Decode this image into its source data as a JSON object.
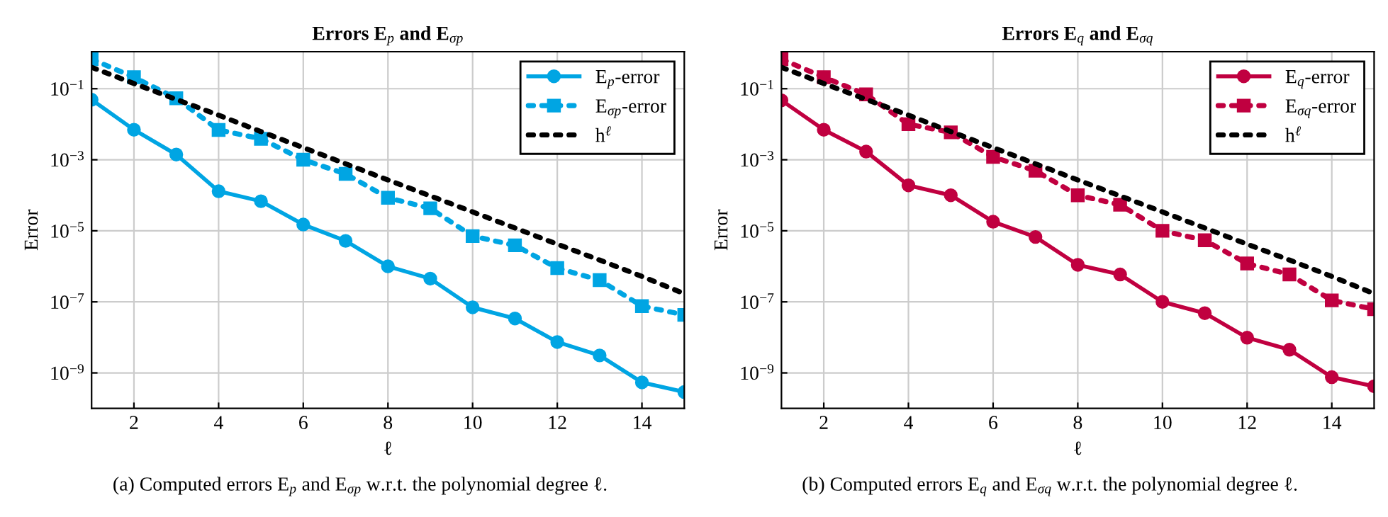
{
  "chart_data": [
    {
      "type": "line",
      "title": "Errors E$_{p}$ and E$_{σp}$",
      "xlabel": "ℓ",
      "ylabel": "Error",
      "x": [
        1,
        2,
        3,
        4,
        5,
        6,
        7,
        8,
        9,
        10,
        11,
        12,
        13,
        14,
        15
      ],
      "series": [
        {
          "name": "E$_{p}$-error",
          "color": "#00a5e3",
          "marker": "circle",
          "line_style": "solid",
          "values": [
            0.049,
            0.007,
            0.0014,
            0.00013,
            6.8e-05,
            1.5e-05,
            5.2e-06,
            1e-06,
            4.5e-07,
            7e-08,
            3.4e-08,
            7.4e-09,
            3.1e-09,
            5.4e-10,
            2.9e-10
          ]
        },
        {
          "name": "E$_{σp}$-error",
          "color": "#00a5e3",
          "marker": "square",
          "line_style": "dotted",
          "values": [
            0.68,
            0.21,
            0.054,
            0.0069,
            0.0039,
            0.001,
            0.0004,
            8.5e-05,
            4.3e-05,
            7.1e-06,
            3.9e-06,
            8.9e-07,
            4.1e-07,
            7.6e-08,
            4.3e-08
          ]
        },
        {
          "name": "h$^{ℓ}$",
          "color": "#000000",
          "marker": "none",
          "line_style": "dotted",
          "values": [
            0.4,
            0.14,
            0.05,
            0.018,
            0.0062,
            0.0022,
            0.00077,
            0.00027,
            9.6e-05,
            3.4e-05,
            1.2e-05,
            4.2e-06,
            1.5e-06,
            5.2e-07,
            1.7e-07
          ]
        }
      ],
      "log": "y",
      "xlim": [
        1,
        15
      ],
      "ylim": [
        1e-10,
        1.1
      ],
      "xticks": [
        2,
        4,
        6,
        8,
        10,
        12,
        14
      ],
      "yticks": [
        {
          "value": 0.1,
          "label": "10$^{−1}$"
        },
        {
          "value": 0.001,
          "label": "10$^{−3}$"
        },
        {
          "value": 1e-05,
          "label": "10$^{−5}$"
        },
        {
          "value": 1e-07,
          "label": "10$^{−7}$"
        },
        {
          "value": 1e-09,
          "label": "10$^{−9}$"
        }
      ],
      "grid": true,
      "legend": "top right",
      "annotations": [
        "(a) Computed errors E$_{p}$ and E$_{σp}$ w.r.t. the polynomial degree ℓ."
      ]
    },
    {
      "type": "line",
      "title": "Errors E$_{q}$ and E$_{σq}$",
      "xlabel": "ℓ",
      "ylabel": "Error",
      "x": [
        1,
        2,
        3,
        4,
        5,
        6,
        7,
        8,
        9,
        10,
        11,
        12,
        13,
        14,
        15
      ],
      "series": [
        {
          "name": "E$_{q}$-error",
          "color": "#c00040",
          "marker": "circle",
          "line_style": "solid",
          "values": [
            0.047,
            0.007,
            0.0017,
            0.00019,
            0.0001,
            1.8e-05,
            6.7e-06,
            1.1e-06,
            5.9e-07,
            1e-07,
            4.8e-08,
            9.8e-09,
            4.5e-09,
            7.6e-10,
            4.2e-10
          ]
        },
        {
          "name": "E$_{σq}$-error",
          "color": "#c00040",
          "marker": "square",
          "line_style": "dotted",
          "values": [
            0.68,
            0.21,
            0.069,
            0.01,
            0.0059,
            0.0012,
            0.00049,
            0.0001,
            5.4e-05,
            1e-05,
            5.4e-06,
            1.2e-06,
            5.9e-07,
            1.1e-07,
            6.2e-08
          ]
        },
        {
          "name": "h$^{ℓ}$",
          "color": "#000000",
          "marker": "none",
          "line_style": "dotted",
          "values": [
            0.4,
            0.14,
            0.05,
            0.018,
            0.0062,
            0.0022,
            0.00077,
            0.00027,
            9.6e-05,
            3.4e-05,
            1.2e-05,
            4.2e-06,
            1.5e-06,
            5.2e-07,
            1.7e-07
          ]
        }
      ],
      "log": "y",
      "xlim": [
        1,
        15
      ],
      "ylim": [
        1e-10,
        1.1
      ],
      "xticks": [
        2,
        4,
        6,
        8,
        10,
        12,
        14
      ],
      "yticks": [
        {
          "value": 0.1,
          "label": "10$^{−1}$"
        },
        {
          "value": 0.001,
          "label": "10$^{−3}$"
        },
        {
          "value": 1e-05,
          "label": "10$^{−5}$"
        },
        {
          "value": 1e-07,
          "label": "10$^{−7}$"
        },
        {
          "value": 1e-09,
          "label": "10$^{−9}$"
        }
      ],
      "grid": true,
      "legend": "top right",
      "annotations": [
        "(b) Computed errors E$_{q}$ and E$_{σq}$ w.r.t. the polynomial degree ℓ."
      ]
    }
  ]
}
